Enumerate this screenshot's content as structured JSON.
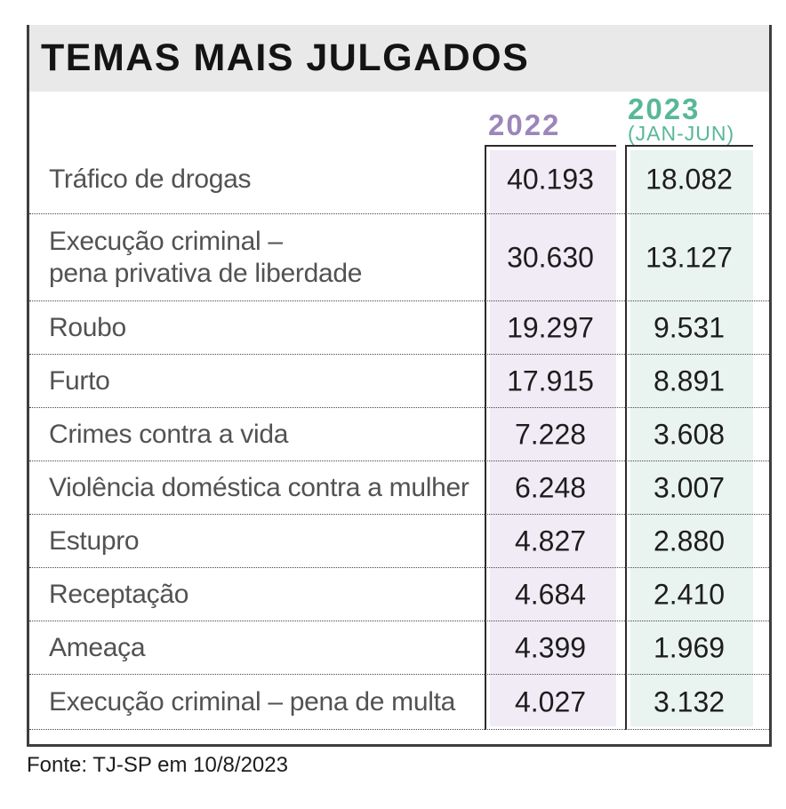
{
  "title": "TEMAS MAIS JULGADOS",
  "header": {
    "col2022_label": "2022",
    "col2023_label": "2023",
    "col2023_sublabel": "(JAN-JUN)"
  },
  "source": "Fonte: TJ-SP em 10/8/2023",
  "colors": {
    "accent_2022": "#9c86ba",
    "accent_2023": "#58b896",
    "fill_2022": "#f1ebf6",
    "fill_2023": "#e9f3ef",
    "band_gray": "#e9e9e9",
    "frame_border": "#3e3e3e",
    "col_border": "#2c2c2c",
    "dotted_line": "#474747",
    "label_gray": "#525252",
    "value_black": "#1d1d1d",
    "title_black": "#141414"
  },
  "chart_data": {
    "type": "table",
    "title": "TEMAS MAIS JULGADOS",
    "columns": [
      {
        "key": "y2022",
        "label": "2022",
        "sublabel": ""
      },
      {
        "key": "y2023",
        "label": "2023",
        "sublabel": "(JAN-JUN)"
      }
    ],
    "rows": [
      {
        "label": "Tráfico de drogas",
        "y2022": 40193,
        "y2023": 18082,
        "display_2022": "40.193",
        "display_2023": "18.082"
      },
      {
        "label": "Execução criminal –\npena privativa de liberdade",
        "y2022": 30630,
        "y2023": 13127,
        "display_2022": "30.630",
        "display_2023": "13.127"
      },
      {
        "label": "Roubo",
        "y2022": 19297,
        "y2023": 9531,
        "display_2022": "19.297",
        "display_2023": "9.531"
      },
      {
        "label": "Furto",
        "y2022": 17915,
        "y2023": 8891,
        "display_2022": "17.915",
        "display_2023": "8.891"
      },
      {
        "label": "Crimes contra a vida",
        "y2022": 7228,
        "y2023": 3608,
        "display_2022": "7.228",
        "display_2023": "3.608"
      },
      {
        "label": "Violência doméstica contra a mulher",
        "y2022": 6248,
        "y2023": 3007,
        "display_2022": "6.248",
        "display_2023": "3.007"
      },
      {
        "label": "Estupro",
        "y2022": 4827,
        "y2023": 2880,
        "display_2022": "4.827",
        "display_2023": "2.880"
      },
      {
        "label": "Receptação",
        "y2022": 4684,
        "y2023": 2410,
        "display_2022": "4.684",
        "display_2023": "2.410"
      },
      {
        "label": "Ameaça",
        "y2022": 4399,
        "y2023": 1969,
        "display_2022": "4.399",
        "display_2023": "1.969"
      },
      {
        "label": "Execução criminal – pena de multa",
        "y2022": 4027,
        "y2023": 3132,
        "display_2022": "4.027",
        "display_2023": "3.132"
      }
    ],
    "source": "Fonte: TJ-SP em 10/8/2023",
    "number_format": "pt-BR (thousands separator: dot)"
  }
}
